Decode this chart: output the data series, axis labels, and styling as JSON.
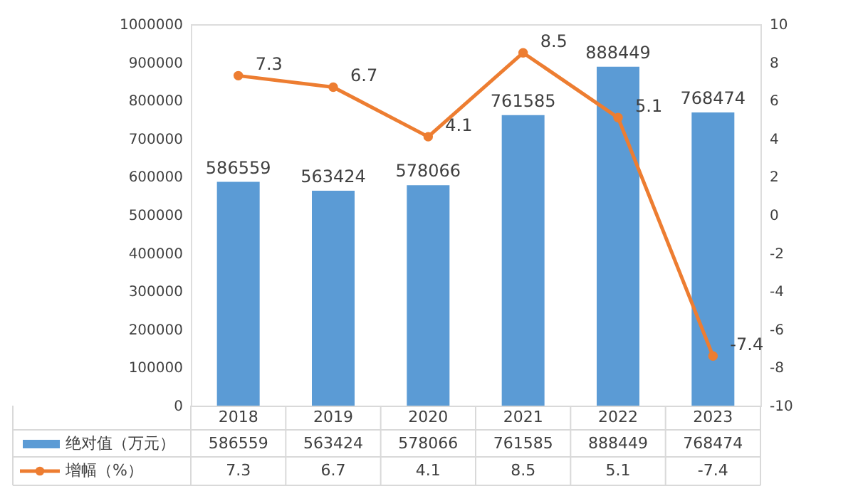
{
  "chart_data": {
    "type": "bar",
    "categories": [
      "2018",
      "2019",
      "2020",
      "2021",
      "2022",
      "2023"
    ],
    "series": [
      {
        "name": "绝对值（万元）",
        "type": "bar",
        "color": "#5b9bd5",
        "values": [
          586559,
          563424,
          578066,
          761585,
          888449,
          768474
        ],
        "value_labels": [
          "586559",
          "563424",
          "578066",
          "761585",
          "888449",
          "768474"
        ]
      },
      {
        "name": "增幅（%）",
        "type": "line",
        "axis": "y2",
        "color": "#ed7d31",
        "values": [
          7.3,
          6.7,
          4.1,
          8.5,
          5.1,
          -7.4
        ],
        "value_labels": [
          "7.3",
          "6.7",
          "4.1",
          "8.5",
          "5.1",
          "-7.4"
        ]
      }
    ],
    "ylim": [
      0,
      1000000
    ],
    "yticks": [
      0,
      100000,
      200000,
      300000,
      400000,
      500000,
      600000,
      700000,
      800000,
      900000,
      1000000
    ],
    "y2lim": [
      -10,
      10
    ],
    "y2ticks": [
      -10,
      -8,
      -6,
      -4,
      -2,
      0,
      2,
      4,
      6,
      8,
      10
    ],
    "annotations": [
      "586559",
      "563424",
      "578066",
      "761585",
      "888449",
      "768474",
      "7.3",
      "6.7",
      "4.1",
      "8.5",
      "5.1",
      "-7.4"
    ],
    "legend": "bottom",
    "marker": "circle",
    "line_style": "solid",
    "grid": false
  }
}
